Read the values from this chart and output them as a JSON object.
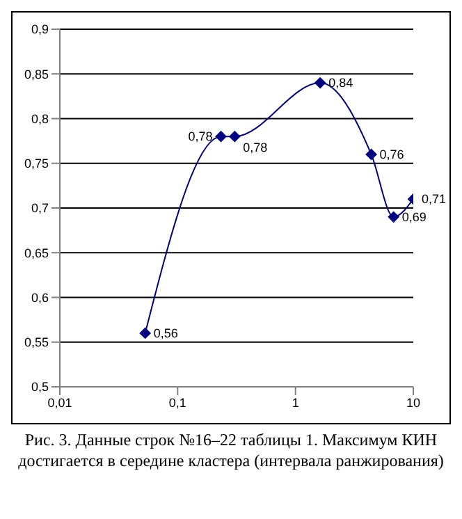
{
  "chart_data": {
    "type": "line",
    "x": [
      0.053,
      0.233,
      0.305,
      1.62,
      4.4,
      6.8,
      10
    ],
    "series": [
      {
        "color": "#000080",
        "values": [
          0.56,
          0.78,
          0.78,
          0.84,
          0.76,
          0.69,
          0.71
        ],
        "value_labels": [
          "0,56",
          "0,78",
          "0,78",
          "0,84",
          "0,76",
          "0,69",
          "0,71"
        ]
      }
    ],
    "log": "x",
    "xlim": [
      0.01,
      10
    ],
    "xticks": [
      {
        "value": 0.01,
        "label": "0,01"
      },
      {
        "value": 0.1,
        "label": "0,1"
      },
      1,
      10
    ],
    "ylim": [
      0.5,
      0.9
    ],
    "yticks": [
      {
        "value": 0.5,
        "label": "0,5"
      },
      {
        "value": 0.55,
        "label": "0,55"
      },
      {
        "value": 0.6,
        "label": "0,6"
      },
      {
        "value": 0.65,
        "label": "0,65"
      },
      {
        "value": 0.7,
        "label": "0,7"
      },
      {
        "value": 0.75,
        "label": "0,75"
      },
      {
        "value": 0.8,
        "label": "0,8"
      },
      {
        "value": 0.85,
        "label": "0,85"
      },
      {
        "value": 0.9,
        "label": "0,9"
      }
    ],
    "grid": "y",
    "marker": "diamond",
    "line_style": "solid",
    "annotations": [
      "Рис. 3. Данные строк №16–22 таблицы 1. Максимум КИН достигается в середине кластера (интервала ранжирования)"
    ]
  }
}
